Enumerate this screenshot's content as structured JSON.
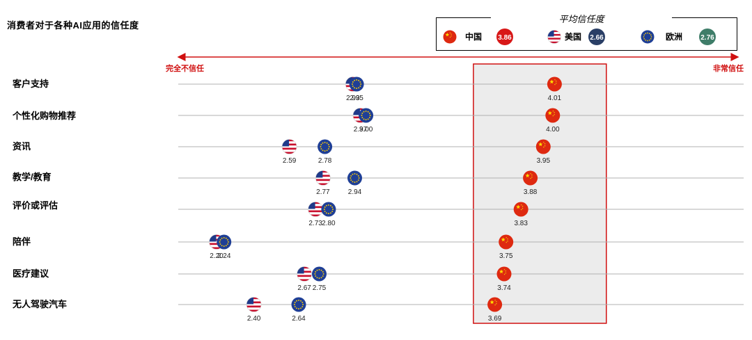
{
  "chart_data": {
    "type": "scatter",
    "title": "消费者对于各种AI应用的信任度",
    "x_min_label": "完全不信任",
    "x_max_label": "非常信任",
    "legend_title": "平均信任度",
    "categories": [
      "客户支持",
      "个性化购物推荐",
      "资讯",
      "教学/教育",
      "评价或评估",
      "陪伴",
      "医疗建议",
      "无人驾驶汽车"
    ],
    "series": [
      {
        "name": "中国",
        "average": "3.86",
        "badge_color": "#d81818",
        "flag_icon": "china-flag-icon",
        "values": [
          4.01,
          4.0,
          3.95,
          3.88,
          3.83,
          3.75,
          3.74,
          3.69
        ]
      },
      {
        "name": "美国",
        "average": "2.66",
        "badge_color": "#2a3f66",
        "flag_icon": "usa-flag-icon",
        "values": [
          2.93,
          2.97,
          2.59,
          2.77,
          2.73,
          2.2,
          2.67,
          2.4
        ]
      },
      {
        "name": "欧洲",
        "average": "2.76",
        "badge_color": "#3f7d69",
        "flag_icon": "eu-flag-icon",
        "values": [
          2.95,
          3.0,
          2.78,
          2.94,
          2.8,
          2.24,
          2.75,
          2.64
        ]
      }
    ],
    "value_labels": {
      "中国": [
        "4.01",
        "4.00",
        "3.95",
        "3.88",
        "3.83",
        "3.75",
        "3.74",
        "3.69"
      ],
      "美国": [
        "2.93",
        "2.97",
        "2.59",
        "2.77",
        "2.73",
        "2.20",
        "2.67",
        "2.40"
      ],
      "欧洲": [
        "2.95",
        "3.00",
        "2.78",
        "2.94",
        "2.80",
        "2.24",
        "2.75",
        "2.64"
      ]
    },
    "highlight_range": [
      3.65,
      4.25
    ],
    "colors": {
      "axis_arrow": "#d01010",
      "highlight_fill": "#ececec",
      "highlight_border": "#d01010",
      "grid": "#b0b0b0"
    }
  }
}
